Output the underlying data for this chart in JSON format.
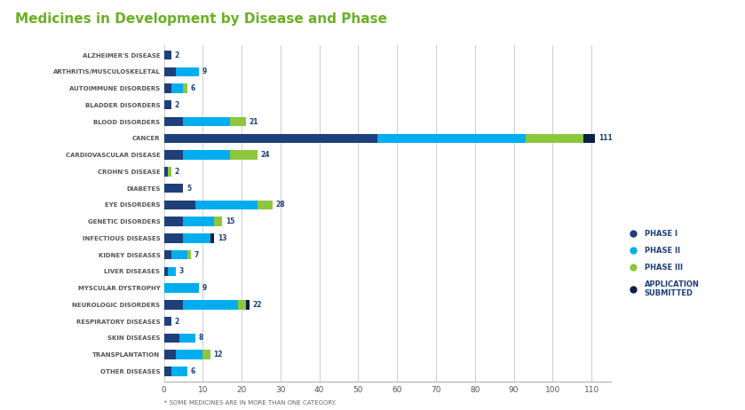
{
  "title": "Medicines in Development by Disease and Phase",
  "title_color": "#6ab023",
  "subtitle": "* SOME MEDICINES ARE IN MORE THAN ONE CATEGORY.",
  "categories": [
    "ALZHEIMER'S DISEASE",
    "ARTHRITIS/MUSCULOSKELETAL",
    "AUTOIMMUNE DISORDERS",
    "BLADDER DISORDERS",
    "BLOOD DISORDERS",
    "CANCER",
    "CARDIOVASCULAR DISEASE",
    "CROHN'S DISEASE",
    "DIABETES",
    "EYE DISORDERS",
    "GENETIC DISORDERS",
    "INFECTIOUS DISEASES",
    "KIDNEY DISEASES",
    "LIVER DISEASES",
    "MYSCULAR DYSTROPHY",
    "NEUROLOGIC DISORDERS",
    "RESPIRATORY DISEASES",
    "SKIN DISEASES",
    "TRANSPLANTATION",
    "OTHER DISEASES"
  ],
  "phase1": [
    2,
    3,
    2,
    2,
    5,
    55,
    5,
    1,
    5,
    8,
    5,
    5,
    2,
    1,
    0,
    5,
    2,
    4,
    3,
    2
  ],
  "phase2": [
    0,
    6,
    3,
    0,
    12,
    38,
    12,
    0,
    0,
    16,
    8,
    7,
    4,
    2,
    9,
    14,
    0,
    4,
    7,
    4
  ],
  "phase3": [
    0,
    0,
    1,
    0,
    4,
    15,
    7,
    1,
    0,
    4,
    2,
    0,
    1,
    0,
    0,
    2,
    0,
    0,
    2,
    0
  ],
  "app_submitted": [
    0,
    0,
    0,
    0,
    0,
    3,
    0,
    0,
    0,
    0,
    0,
    1,
    0,
    0,
    0,
    1,
    0,
    0,
    0,
    0
  ],
  "bar_labels": [
    2,
    9,
    6,
    2,
    21,
    111,
    24,
    2,
    5,
    28,
    15,
    13,
    7,
    3,
    9,
    22,
    2,
    8,
    12,
    6
  ],
  "color_phase1": "#1e3f7a",
  "color_phase2": "#00adef",
  "color_phase3": "#8dc63f",
  "color_app": "#0d1f45",
  "bg_color": "#ffffff",
  "xlim": [
    0,
    115
  ],
  "xticks": [
    0,
    10,
    20,
    30,
    40,
    50,
    60,
    70,
    80,
    90,
    100,
    110
  ],
  "legend_labels": [
    "PHASE I",
    "PHASE II",
    "PHASE III",
    "APPLICATION\nSUBMITTED"
  ],
  "legend_colors": [
    "#1e3f7a",
    "#00adef",
    "#8dc63f",
    "#0d1f45"
  ]
}
